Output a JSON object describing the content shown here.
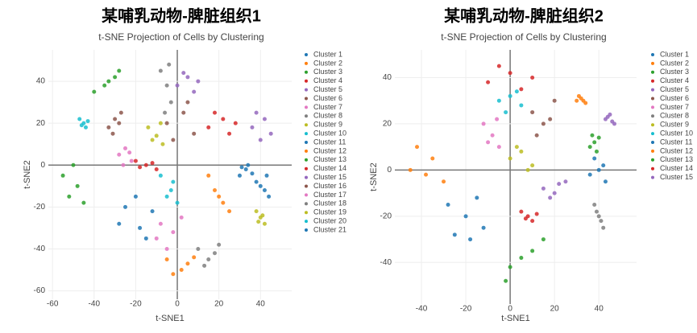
{
  "chart_data": [
    {
      "type": "scatter",
      "title": "某哺乳动物-脾脏组织1",
      "subtitle": "t-SNE Projection of Cells by Clustering",
      "x_label": "t-SNE1",
      "y_label": "t-SNE2",
      "xlim": [
        -62,
        55
      ],
      "ylim": [
        -64,
        55
      ],
      "xticks": [
        -60,
        -40,
        -20,
        0,
        20,
        40
      ],
      "yticks": [
        -60,
        -40,
        -20,
        0,
        20,
        40
      ],
      "grid": true,
      "zeroline": true,
      "legend": "right",
      "series": [
        {
          "name": "Cluster 1",
          "color": "#1f77b4",
          "x": [
            -25,
            -18,
            -12,
            -28,
            -20,
            -15
          ],
          "y": [
            -20,
            -30,
            -22,
            -28,
            -15,
            -35
          ]
        },
        {
          "name": "Cluster 2",
          "color": "#ff7f0e",
          "x": [
            -5,
            2,
            5,
            -2,
            8
          ],
          "y": [
            -45,
            -50,
            -47,
            -52,
            -44
          ]
        },
        {
          "name": "Cluster 3",
          "color": "#2ca02c",
          "x": [
            -55,
            -48,
            -45,
            -52,
            -50
          ],
          "y": [
            -5,
            -10,
            -18,
            -15,
            0
          ]
        },
        {
          "name": "Cluster 4",
          "color": "#d62728",
          "x": [
            15,
            22,
            25,
            18,
            28
          ],
          "y": [
            18,
            22,
            15,
            25,
            20
          ]
        },
        {
          "name": "Cluster 5",
          "color": "#9467bd",
          "x": [
            36,
            42,
            45,
            38,
            40
          ],
          "y": [
            18,
            22,
            15,
            25,
            12
          ]
        },
        {
          "name": "Cluster 6",
          "color": "#8c564b",
          "x": [
            -5,
            3,
            8,
            -2,
            5
          ],
          "y": [
            20,
            25,
            15,
            12,
            30
          ]
        },
        {
          "name": "Cluster 7",
          "color": "#e377c2",
          "x": [
            -8,
            -2,
            2,
            -10,
            -5
          ],
          "y": [
            -28,
            -32,
            -25,
            -35,
            -40
          ]
        },
        {
          "name": "Cluster 8",
          "color": "#7f7f7f",
          "x": [
            -8,
            -5,
            -3,
            -6,
            -4
          ],
          "y": [
            45,
            38,
            30,
            25,
            48
          ]
        },
        {
          "name": "Cluster 9",
          "color": "#bcbd22",
          "x": [
            -14,
            -10,
            -7,
            -12,
            -8
          ],
          "y": [
            18,
            14,
            10,
            12,
            20
          ]
        },
        {
          "name": "Cluster 10",
          "color": "#17becf",
          "x": [
            -8,
            -3,
            0,
            -5,
            -2
          ],
          "y": [
            -5,
            -12,
            -18,
            -15,
            -8
          ]
        },
        {
          "name": "Cluster 11",
          "color": "#1f77b4",
          "x": [
            30,
            33,
            36,
            34,
            31
          ],
          "y": [
            -5,
            -2,
            -4,
            0,
            -1
          ]
        },
        {
          "name": "Cluster 12",
          "color": "#ff7f0e",
          "x": [
            15,
            18,
            22,
            25,
            20
          ],
          "y": [
            -5,
            -12,
            -18,
            -22,
            -15
          ]
        },
        {
          "name": "Cluster 13",
          "color": "#2ca02c",
          "x": [
            -40,
            -35,
            -30,
            -33,
            -28
          ],
          "y": [
            35,
            38,
            42,
            40,
            45
          ]
        },
        {
          "name": "Cluster 14",
          "color": "#d62728",
          "x": [
            -20,
            -15,
            -10,
            -12,
            -18
          ],
          "y": [
            2,
            0,
            -2,
            1,
            -1
          ]
        },
        {
          "name": "Cluster 15",
          "color": "#9467bd",
          "x": [
            0,
            5,
            10,
            8,
            3
          ],
          "y": [
            38,
            42,
            40,
            35,
            44
          ]
        },
        {
          "name": "Cluster 16",
          "color": "#8c564b",
          "x": [
            -33,
            -30,
            -28,
            -31,
            -27
          ],
          "y": [
            18,
            22,
            20,
            15,
            25
          ]
        },
        {
          "name": "Cluster 17",
          "color": "#e377c2",
          "x": [
            -28,
            -25,
            -22,
            -26,
            -23
          ],
          "y": [
            5,
            8,
            2,
            0,
            6
          ]
        },
        {
          "name": "Cluster 18",
          "color": "#7f7f7f",
          "x": [
            10,
            15,
            18,
            13,
            20
          ],
          "y": [
            -40,
            -45,
            -42,
            -48,
            -38
          ]
        },
        {
          "name": "Cluster 19",
          "color": "#bcbd22",
          "x": [
            38,
            40,
            42,
            39,
            41
          ],
          "y": [
            -22,
            -25,
            -28,
            -27,
            -24
          ]
        },
        {
          "name": "Cluster 20",
          "color": "#17becf",
          "x": [
            -47,
            -45,
            -44,
            -46,
            -43
          ],
          "y": [
            22,
            20,
            18,
            19,
            21
          ]
        },
        {
          "name": "Cluster 21",
          "color": "#1f77b4",
          "x": [
            38,
            42,
            44,
            40,
            43
          ],
          "y": [
            -8,
            -12,
            -15,
            -10,
            -5
          ]
        }
      ]
    },
    {
      "type": "scatter",
      "title": "某哺乳动物-脾脏组织2",
      "subtitle": "t-SNE Projection of Cells by Clustering",
      "x_label": "t-SNE1",
      "y_label": "t-SNE2",
      "xlim": [
        -52,
        57
      ],
      "ylim": [
        -58,
        52
      ],
      "xticks": [
        -40,
        -20,
        0,
        20,
        40
      ],
      "yticks": [
        -40,
        -20,
        0,
        20,
        40
      ],
      "grid": true,
      "zeroline": true,
      "legend": "right",
      "series": [
        {
          "name": "Cluster 1",
          "color": "#1f77b4",
          "x": [
            -28,
            -20,
            -12,
            -25,
            -15,
            -18
          ],
          "y": [
            -15,
            -20,
            -25,
            -28,
            -12,
            -30
          ]
        },
        {
          "name": "Cluster 2",
          "color": "#ff7f0e",
          "x": [
            -42,
            -35,
            -30,
            -38,
            -45
          ],
          "y": [
            10,
            5,
            -5,
            -2,
            0
          ]
        },
        {
          "name": "Cluster 3",
          "color": "#2ca02c",
          "x": [
            0,
            5,
            10,
            15,
            -2
          ],
          "y": [
            -42,
            -38,
            -35,
            -30,
            -48
          ]
        },
        {
          "name": "Cluster 4",
          "color": "#d62728",
          "x": [
            -10,
            0,
            10,
            5,
            -5
          ],
          "y": [
            38,
            42,
            40,
            35,
            45
          ]
        },
        {
          "name": "Cluster 5",
          "color": "#9467bd",
          "x": [
            15,
            20,
            25,
            18,
            22
          ],
          "y": [
            -8,
            -10,
            -5,
            -12,
            -6
          ]
        },
        {
          "name": "Cluster 6",
          "color": "#8c564b",
          "x": [
            10,
            15,
            20,
            12,
            18
          ],
          "y": [
            25,
            20,
            30,
            15,
            22
          ]
        },
        {
          "name": "Cluster 7",
          "color": "#e377c2",
          "x": [
            -12,
            -8,
            -5,
            -10,
            -6
          ],
          "y": [
            20,
            15,
            10,
            12,
            22
          ]
        },
        {
          "name": "Cluster 8",
          "color": "#7f7f7f",
          "x": [
            38,
            40,
            42,
            41,
            39
          ],
          "y": [
            -15,
            -20,
            -25,
            -22,
            -18
          ]
        },
        {
          "name": "Cluster 9",
          "color": "#bcbd22",
          "x": [
            0,
            5,
            10,
            3,
            8
          ],
          "y": [
            5,
            8,
            2,
            10,
            0
          ]
        },
        {
          "name": "Cluster 10",
          "color": "#17becf",
          "x": [
            -5,
            0,
            5,
            -2,
            3
          ],
          "y": [
            30,
            32,
            28,
            25,
            34
          ]
        },
        {
          "name": "Cluster 11",
          "color": "#1f77b4",
          "x": [
            36,
            40,
            43,
            38,
            42
          ],
          "y": [
            -2,
            0,
            -5,
            5,
            2
          ]
        },
        {
          "name": "Cluster 12",
          "color": "#ff7f0e",
          "x": [
            30,
            32,
            34,
            31,
            33
          ],
          "y": [
            30,
            31,
            29,
            32,
            30
          ]
        },
        {
          "name": "Cluster 13",
          "color": "#2ca02c",
          "x": [
            36,
            38,
            40,
            37,
            39
          ],
          "y": [
            10,
            12,
            14,
            15,
            8
          ]
        },
        {
          "name": "Cluster 14",
          "color": "#d62728",
          "x": [
            5,
            8,
            10,
            12,
            7
          ],
          "y": [
            -18,
            -20,
            -22,
            -19,
            -21
          ]
        },
        {
          "name": "Cluster 15",
          "color": "#9467bd",
          "x": [
            43,
            45,
            47,
            44,
            46
          ],
          "y": [
            22,
            24,
            20,
            23,
            21
          ]
        }
      ]
    }
  ]
}
